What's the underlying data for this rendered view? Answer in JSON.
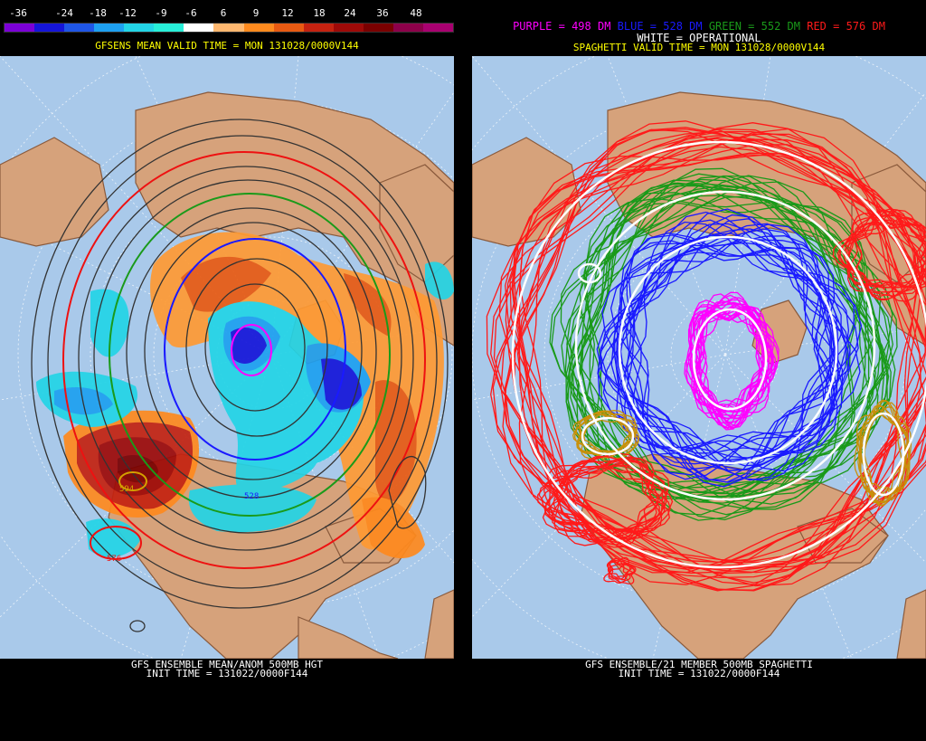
{
  "left": {
    "colorbar": {
      "labels": [
        "-36",
        "-24",
        "-18",
        "-12",
        "-9",
        "-6",
        "6",
        "9",
        "12",
        "18",
        "24",
        "36",
        "48"
      ],
      "colors": [
        "#7b00d6",
        "#1515d9",
        "#1f56e6",
        "#1ea0f0",
        "#23d4e6",
        "#28eed8",
        "#ffffff",
        "#ffb870",
        "#ff8a1e",
        "#e85a12",
        "#c42210",
        "#9e0a08",
        "#7a0000",
        "#8c004a",
        "#a80070"
      ]
    },
    "valid_time": "GFSENS MEAN VALID TIME = MON 131028/0000V144",
    "contour_labels": [
      "594",
      "528",
      "576"
    ],
    "caption_line1": "GFS ENSEMBLE MEAN/ANOM 500MB HGT",
    "caption_line2": "INIT TIME = 131022/0000F144"
  },
  "right": {
    "legend": {
      "purple": "PURPLE = 498 DM",
      "blue": "BLUE = 528 DM",
      "green": "GREEN = 552 DM",
      "red": "RED = 576 DM",
      "white": "WHITE = OPERATIONAL",
      "colors": {
        "purple": "#ff00ff",
        "blue": "#1a1aff",
        "green": "#1a9a1a",
        "red": "#ff1a1a",
        "white": "#ffffff"
      }
    },
    "valid_time": "SPAGHETTI VALID TIME = MON 131028/0000V144",
    "caption_line1": "GFS ENSEMBLE/21 MEMBER 500MB SPAGHETTI",
    "caption_line2": "INIT TIME = 131022/0000F144"
  },
  "map_colors": {
    "ocean": "#a9c9ea",
    "land": "#d6a27b",
    "coast": "#8a5a3c",
    "grid": "#ffffff"
  }
}
